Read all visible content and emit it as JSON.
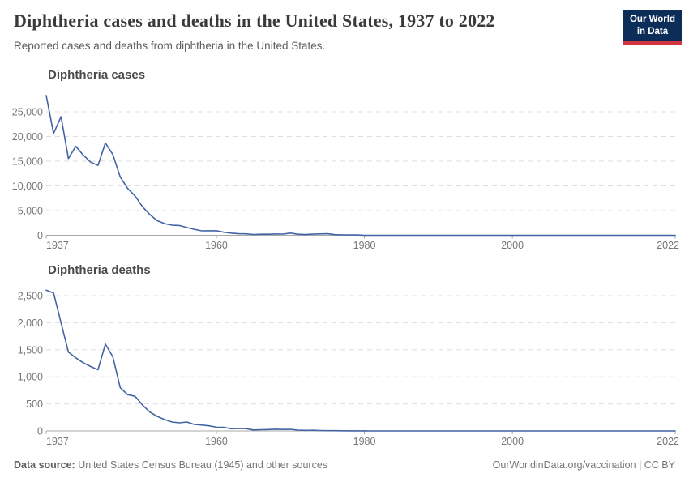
{
  "header": {
    "title": "Diphtheria cases and deaths in the United States, 1937 to 2022",
    "subtitle": "Reported cases and deaths from diphtheria in the United States.",
    "logo": {
      "line1": "Our World",
      "line2": "in Data",
      "bg": "#0d2d59",
      "accent": "#d2353f"
    }
  },
  "footer": {
    "source_label": "Data source:",
    "source_text": " United States Census Bureau (1945) and other sources",
    "link": "OurWorldinData.org/vaccination | CC BY"
  },
  "colors": {
    "line": "#4264a3",
    "grid": "#dedede",
    "axis": "#a8a8a8",
    "tick_text": "#757575"
  },
  "years": [
    1937,
    1938,
    1939,
    1940,
    1941,
    1942,
    1943,
    1944,
    1945,
    1946,
    1947,
    1948,
    1949,
    1950,
    1951,
    1952,
    1953,
    1954,
    1955,
    1956,
    1957,
    1958,
    1959,
    1960,
    1961,
    1962,
    1963,
    1964,
    1965,
    1966,
    1967,
    1968,
    1969,
    1970,
    1971,
    1972,
    1973,
    1974,
    1975,
    1976,
    1977,
    1978,
    1979,
    1980,
    1981,
    1982,
    1983,
    1984,
    1985,
    1986,
    1987,
    1988,
    1989,
    1990,
    1991,
    1992,
    1993,
    1994,
    1995,
    1996,
    1997,
    1998,
    1999,
    2000,
    2001,
    2002,
    2003,
    2004,
    2005,
    2006,
    2007,
    2008,
    2009,
    2010,
    2011,
    2012,
    2013,
    2014,
    2015,
    2016,
    2017,
    2018,
    2019,
    2020,
    2021,
    2022
  ],
  "chart_data": [
    {
      "type": "line",
      "title": "Diphtheria cases",
      "xlabel": "",
      "ylabel": "",
      "grid": true,
      "legend": "none",
      "xlim": [
        1937,
        2022
      ],
      "ylim": [
        0,
        25000
      ],
      "xticks": [
        1937,
        1960,
        1980,
        2000,
        2022
      ],
      "xtick_labels": [
        "1937",
        "1960",
        "1980",
        "2000",
        "2022"
      ],
      "yticks": [
        0,
        5000,
        10000,
        15000,
        20000,
        25000
      ],
      "ytick_labels": [
        "0",
        "5,000",
        "10,000",
        "15,000",
        "20,000",
        "25,000"
      ],
      "series": [
        {
          "name": "Diphtheria cases",
          "color": "#4264a3",
          "values": [
            28300,
            20600,
            24000,
            15536,
            18000,
            16260,
            14811,
            14150,
            18675,
            16354,
            11800,
            9493,
            7989,
            5796,
            4200,
            2960,
            2355,
            2041,
            1984,
            1568,
            1211,
            900,
            920,
            918,
            617,
            444,
            314,
            293,
            164,
            209,
            219,
            260,
            241,
            435,
            215,
            152,
            228,
            272,
            307,
            128,
            84,
            76,
            59,
            3,
            5,
            2,
            5,
            1,
            3,
            0,
            3,
            2,
            3,
            4,
            5,
            4,
            0,
            2,
            0,
            2,
            4,
            1,
            1,
            1,
            2,
            1,
            1,
            0,
            0,
            0,
            0,
            0,
            0,
            0,
            0,
            1,
            0,
            1,
            0,
            0,
            0,
            0,
            1,
            2,
            0,
            0
          ]
        }
      ]
    },
    {
      "type": "line",
      "title": "Diphtheria deaths",
      "xlabel": "",
      "ylabel": "",
      "grid": true,
      "legend": "none",
      "xlim": [
        1937,
        2022
      ],
      "ylim": [
        0,
        2500
      ],
      "xticks": [
        1937,
        1960,
        1980,
        2000,
        2022
      ],
      "xtick_labels": [
        "1937",
        "1960",
        "1980",
        "2000",
        "2022"
      ],
      "yticks": [
        0,
        500,
        1000,
        1500,
        2000,
        2500
      ],
      "ytick_labels": [
        "0",
        "500",
        "1,000",
        "1,500",
        "2,000",
        "2,500"
      ],
      "series": [
        {
          "name": "Diphtheria deaths",
          "color": "#4264a3",
          "values": [
            2600,
            2550,
            2000,
            1457,
            1350,
            1260,
            1190,
            1130,
            1605,
            1370,
            800,
            670,
            640,
            480,
            350,
            270,
            210,
            165,
            150,
            165,
            120,
            110,
            95,
            69,
            68,
            41,
            45,
            42,
            18,
            22,
            26,
            31,
            27,
            30,
            15,
            10,
            12,
            8,
            5,
            4,
            3,
            2,
            1,
            1,
            0,
            0,
            0,
            0,
            0,
            0,
            0,
            0,
            0,
            0,
            0,
            0,
            0,
            0,
            0,
            0,
            0,
            0,
            0,
            0,
            0,
            0,
            0,
            0,
            0,
            0,
            0,
            0,
            0,
            0,
            0,
            0,
            0,
            0,
            0,
            0,
            0,
            0,
            0,
            0,
            0,
            0
          ]
        }
      ]
    }
  ]
}
